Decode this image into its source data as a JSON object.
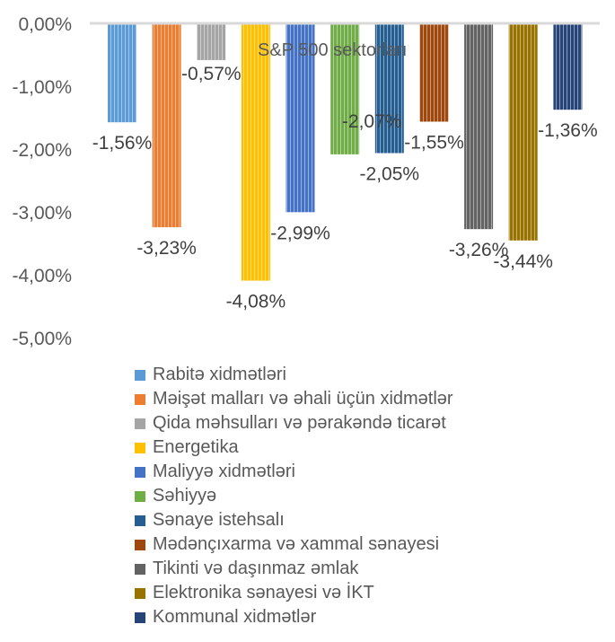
{
  "chart_data": {
    "type": "bar",
    "title": "S&P 500 sektorları",
    "ylim": [
      -5,
      0
    ],
    "yticks": [
      0,
      -1,
      -2,
      -3,
      -4,
      -5
    ],
    "ytick_labels": [
      "0,00%",
      "-1,00%",
      "-2,00%",
      "-3,00%",
      "-4,00%",
      "-5,00%"
    ],
    "grid": false,
    "legend_position": "bottom",
    "series": [
      {
        "name": "Rabitə xidmətləri",
        "value": -1.56,
        "label": "-1,56%",
        "color": "#5B9BD5"
      },
      {
        "name": "Məişət malları və əhali üçün xidmətlər",
        "value": -3.23,
        "label": "-3,23%",
        "color": "#ED7D31"
      },
      {
        "name": "Qida məhsulları və pərakəndə ticarət",
        "value": -0.57,
        "label": "-0,57%",
        "color": "#A5A5A5"
      },
      {
        "name": "Energetika",
        "value": -4.08,
        "label": "-4,08%",
        "color": "#FFC000"
      },
      {
        "name": "Maliyyə xidmətləri",
        "value": -2.99,
        "label": "-2,99%",
        "color": "#4472C4"
      },
      {
        "name": "Səhiyyə",
        "value": -2.07,
        "label": "-2,07%",
        "color": "#70AD47"
      },
      {
        "name": "Sənaye istehsalı",
        "value": -2.05,
        "label": "-2,05%",
        "color": "#255E91"
      },
      {
        "name": "Mədənçıxarma və xammal sənayesi",
        "value": -1.55,
        "label": "-1,55%",
        "color": "#9E480E"
      },
      {
        "name": "Tikinti və daşınmaz əmlak",
        "value": -3.26,
        "label": "-3,26%",
        "color": "#636363"
      },
      {
        "name": "Elektronika sənayesi və İKT",
        "value": -3.44,
        "label": "-3,44%",
        "color": "#997300"
      },
      {
        "name": "Kommunal xidmətlər",
        "value": -1.36,
        "label": "-1,36%",
        "color": "#264478"
      }
    ]
  }
}
